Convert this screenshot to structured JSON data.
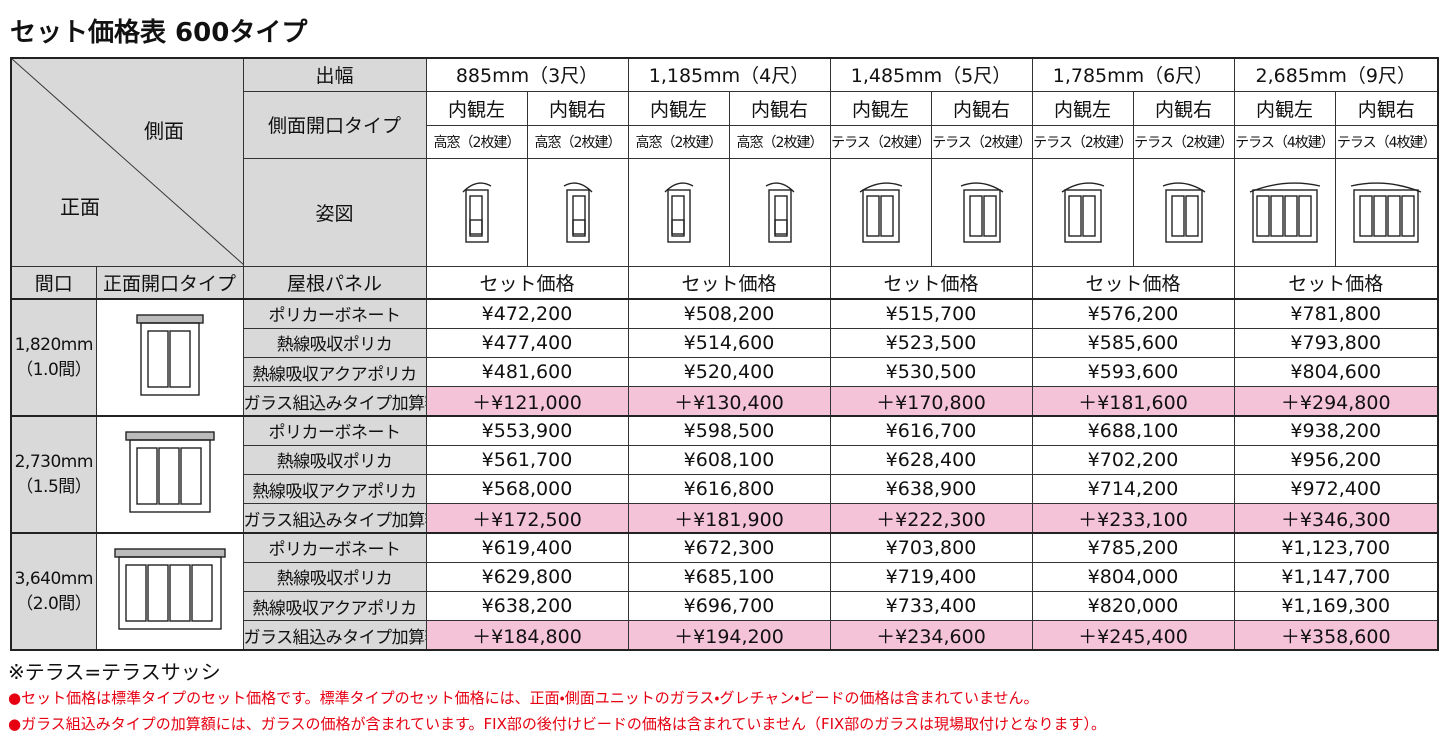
{
  "title": "セット価格表 600タイプ",
  "header": {
    "corner_side": "側面",
    "corner_front": "正面",
    "width_label": "出幅",
    "side_type_label": "側面開口タイプ",
    "figure_label": "姿図",
    "frontage_label": "間口",
    "front_type_label": "正面開口タイプ",
    "roof_label": "屋根パネル",
    "widths": [
      {
        "label": "885mm（3尺）",
        "price_label": "セット価格",
        "sides": [
          {
            "view": "内観左",
            "type": "高窓（2枚建）"
          },
          {
            "view": "内観右",
            "type": "高窓（2枚建）"
          }
        ]
      },
      {
        "label": "1,185mm（4尺）",
        "price_label": "セット価格",
        "sides": [
          {
            "view": "内観左",
            "type": "高窓（2枚建）"
          },
          {
            "view": "内観右",
            "type": "高窓（2枚建）"
          }
        ]
      },
      {
        "label": "1,485mm（5尺）",
        "price_label": "セット価格",
        "sides": [
          {
            "view": "内観左",
            "type": "テラス（2枚建）"
          },
          {
            "view": "内観右",
            "type": "テラス（2枚建）"
          }
        ]
      },
      {
        "label": "1,785mm（6尺）",
        "price_label": "セット価格",
        "sides": [
          {
            "view": "内観左",
            "type": "テラス（2枚建）"
          },
          {
            "view": "内観右",
            "type": "テラス（2枚建）"
          }
        ]
      },
      {
        "label": "2,685mm（9尺）",
        "price_label": "セット価格",
        "sides": [
          {
            "view": "内観左",
            "type": "テラス（4枚建）"
          },
          {
            "view": "内観右",
            "type": "テラス（4枚建）"
          }
        ]
      }
    ]
  },
  "groups": [
    {
      "frontage": "1,820mm",
      "ken": "（1.0間）",
      "rows": [
        {
          "panel": "ポリカーボネート",
          "prices": [
            "¥472,200",
            "¥508,200",
            "¥515,700",
            "¥576,200",
            "¥781,800"
          ]
        },
        {
          "panel": "熱線吸収ポリカ",
          "prices": [
            "¥477,400",
            "¥514,600",
            "¥523,500",
            "¥585,600",
            "¥793,800"
          ]
        },
        {
          "panel": "熱線吸収アクアポリカ",
          "prices": [
            "¥481,600",
            "¥520,400",
            "¥530,500",
            "¥593,600",
            "¥804,600"
          ]
        },
        {
          "panel": "ガラス組込みタイプ加算額",
          "prices": [
            "＋¥121,000",
            "＋¥130,400",
            "＋¥170,800",
            "＋¥181,600",
            "＋¥294,800"
          ]
        }
      ]
    },
    {
      "frontage": "2,730mm",
      "ken": "（1.5間）",
      "rows": [
        {
          "panel": "ポリカーボネート",
          "prices": [
            "¥553,900",
            "¥598,500",
            "¥616,700",
            "¥688,100",
            "¥938,200"
          ]
        },
        {
          "panel": "熱線吸収ポリカ",
          "prices": [
            "¥561,700",
            "¥608,100",
            "¥628,400",
            "¥702,200",
            "¥956,200"
          ]
        },
        {
          "panel": "熱線吸収アクアポリカ",
          "prices": [
            "¥568,000",
            "¥616,800",
            "¥638,900",
            "¥714,200",
            "¥972,400"
          ]
        },
        {
          "panel": "ガラス組込みタイプ加算額",
          "prices": [
            "＋¥172,500",
            "＋¥181,900",
            "＋¥222,300",
            "＋¥233,100",
            "＋¥346,300"
          ]
        }
      ]
    },
    {
      "frontage": "3,640mm",
      "ken": "（2.0間）",
      "rows": [
        {
          "panel": "ポリカーボネート",
          "prices": [
            "¥619,400",
            "¥672,300",
            "¥703,800",
            "¥785,200",
            "¥1,123,700"
          ]
        },
        {
          "panel": "熱線吸収ポリカ",
          "prices": [
            "¥629,800",
            "¥685,100",
            "¥719,400",
            "¥804,000",
            "¥1,147,700"
          ]
        },
        {
          "panel": "熱線吸収アクアポリカ",
          "prices": [
            "¥638,200",
            "¥696,700",
            "¥733,400",
            "¥820,000",
            "¥1,169,300"
          ]
        },
        {
          "panel": "ガラス組込みタイプ加算額",
          "prices": [
            "＋¥184,800",
            "＋¥194,200",
            "＋¥234,600",
            "＋¥245,400",
            "＋¥358,600"
          ]
        }
      ]
    }
  ],
  "notes": [
    "※テラス=テラスサッシ",
    "●セット価格は標準タイプのセット価格です。標準タイプのセット価格には、正面・側面ユニットのガラス・グレチャン・ビードの価格は含まれていません。",
    "●ガラス組込みタイプの加算額には、ガラスの価格が含まれています。FIX部の後付けビードの価格は含まれていません（FIX部のガラスは現場取付けとなります）。"
  ]
}
